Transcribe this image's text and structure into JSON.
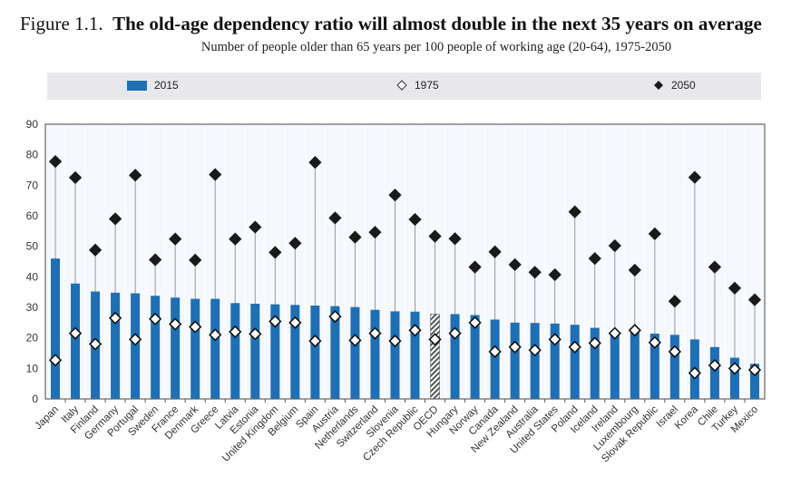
{
  "chart_data": {
    "type": "bar",
    "title_prefix": "Figure 1.1.",
    "title": "The old-age dependency ratio will almost double in the next 35 years on average",
    "subtitle": "Number of people older than 65 years per 100 people of working age (20-64), 1975-2050",
    "ylim": [
      0,
      90
    ],
    "yticks": [
      0,
      10,
      20,
      30,
      40,
      50,
      60,
      70,
      80,
      90
    ],
    "grid": true,
    "legend_placement": "top",
    "categories": [
      "Japan",
      "Italy",
      "Finland",
      "Germany",
      "Portugal",
      "Sweden",
      "France",
      "Denmark",
      "Greece",
      "Latvia",
      "Estonia",
      "United Kingdom",
      "Belgium",
      "Spain",
      "Austria",
      "Netherlands",
      "Switzerland",
      "Slovenia",
      "Czech Republic",
      "OECD",
      "Hungary",
      "Norway",
      "Canada",
      "New Zealand",
      "Australia",
      "United States",
      "Poland",
      "Iceland",
      "Ireland",
      "Luxembourg",
      "Slovak Republic",
      "Israel",
      "Korea",
      "Chile",
      "Turkey",
      "Mexico"
    ],
    "highlight_category": "OECD",
    "series": [
      {
        "name": "2015",
        "marker": "bar",
        "color": "#1f6fb4",
        "values": [
          46,
          37.8,
          35.2,
          34.8,
          34.6,
          33.8,
          33.2,
          32.8,
          32.8,
          31.4,
          31.2,
          31,
          30.8,
          30.6,
          30.4,
          30.1,
          29.2,
          28.7,
          28.6,
          27.8,
          27.8,
          27.5,
          26,
          25,
          24.9,
          24.7,
          24.3,
          23.3,
          22.2,
          22,
          21.4,
          21,
          19.5,
          17,
          13.5,
          11.5
        ]
      },
      {
        "name": "1975",
        "marker": "open-diamond",
        "color": "#ffffff",
        "values": [
          12.7,
          21.5,
          18,
          26.5,
          19.5,
          26.2,
          24.5,
          23.6,
          21,
          22,
          21.3,
          25.4,
          25,
          19,
          27,
          19.2,
          21.5,
          19,
          22.5,
          19.5,
          21.5,
          25,
          15.5,
          17,
          16,
          19.5,
          17,
          18.3,
          21.5,
          22.5,
          18.5,
          15.5,
          8.5,
          11,
          10,
          9.5
        ]
      },
      {
        "name": "2050",
        "marker": "filled-diamond",
        "color": "#1a1a1a",
        "values": [
          77.8,
          72.5,
          48.8,
          59,
          73.3,
          45.6,
          52.4,
          45.5,
          73.5,
          52.4,
          56.3,
          48,
          51,
          77.5,
          59.3,
          53,
          54.6,
          66.8,
          58.8,
          53.3,
          52.5,
          43.2,
          48.2,
          44,
          41.5,
          40.7,
          61.3,
          46,
          50.2,
          42.2,
          54.1,
          32,
          72.6,
          43.2,
          36.3,
          32.5
        ]
      }
    ]
  }
}
